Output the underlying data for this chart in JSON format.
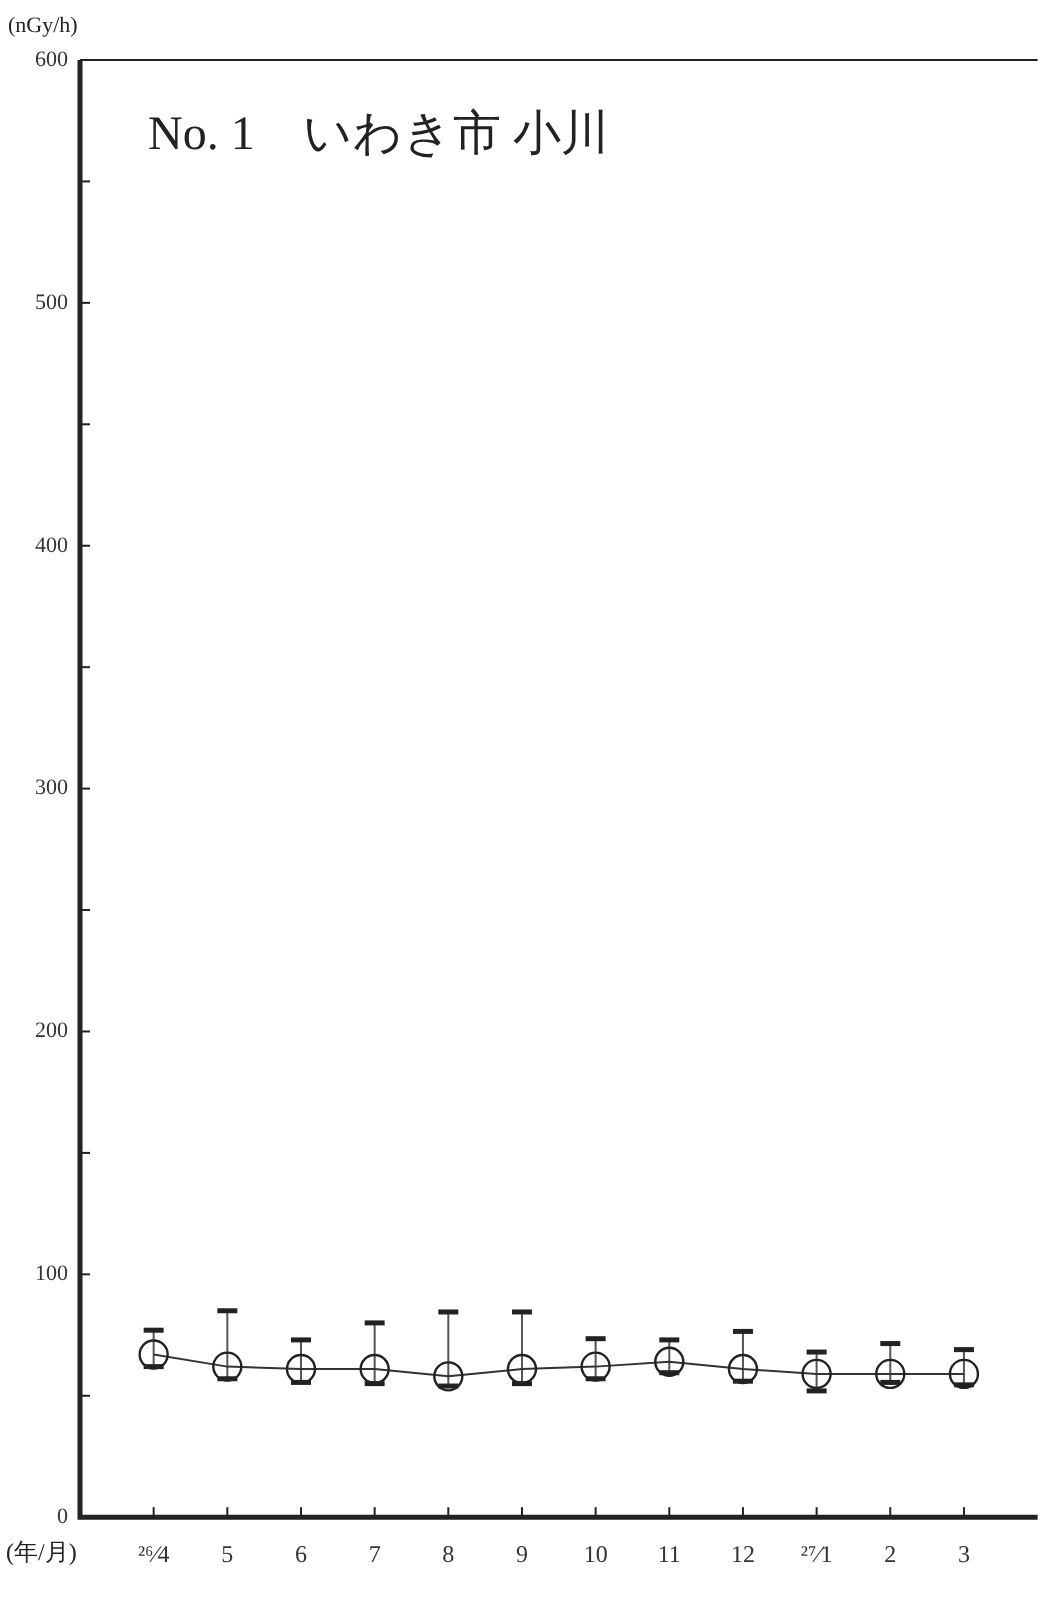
{
  "chart_data": {
    "type": "line",
    "title": "No. 1　いわき市 小川",
    "xlabel": "(年/月)",
    "ylabel": "(nGy/h)",
    "categories": [
      "²⁶⁄4",
      "5",
      "6",
      "7",
      "8",
      "9",
      "10",
      "11",
      "12",
      "²⁷⁄1",
      "2",
      "3"
    ],
    "series": [
      {
        "color": "#333333",
        "values": [
          67,
          62,
          61,
          61,
          58,
          61,
          62,
          64,
          61,
          59,
          59,
          59
        ],
        "errors": [
          [
            62,
            77
          ],
          [
            57,
            85
          ],
          [
            55.5,
            73
          ],
          [
            55,
            80
          ],
          [
            54,
            84.5
          ],
          [
            55,
            84.5
          ],
          [
            57,
            73.5
          ],
          [
            59.5,
            73
          ],
          [
            56,
            76.5
          ],
          [
            52,
            68
          ],
          [
            55.5,
            71.5
          ],
          [
            54.5,
            69
          ]
        ]
      }
    ],
    "ylim": [
      0,
      600
    ],
    "yticks": [
      0,
      {
        "value": 50,
        "label": null
      },
      100,
      {
        "value": 150,
        "label": null
      },
      200,
      {
        "value": 250,
        "label": null
      },
      300,
      {
        "value": 350,
        "label": null
      },
      400,
      {
        "value": 450,
        "label": null
      },
      500,
      {
        "value": 550,
        "label": null
      },
      600
    ],
    "marker": "circle",
    "line_style": "solid",
    "grid": false,
    "legend": false
  }
}
